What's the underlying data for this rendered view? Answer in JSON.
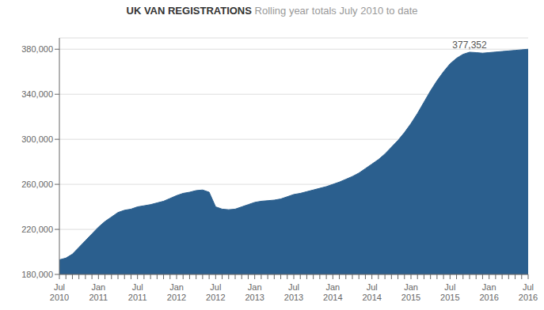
{
  "chart_data": {
    "type": "area",
    "title": "UK VAN REGISTRATIONS",
    "subtitle": " Rolling year totals July 2010 to date",
    "categories": [
      "Jul\n2010",
      null,
      null,
      null,
      null,
      null,
      "Jan\n2011",
      null,
      null,
      null,
      null,
      null,
      "Jul\n2011",
      null,
      null,
      null,
      null,
      null,
      "Jan\n2012",
      null,
      null,
      null,
      null,
      null,
      "Jul\n2012",
      null,
      null,
      null,
      null,
      null,
      "Jan\n2013",
      null,
      null,
      null,
      null,
      null,
      "Jul\n2013",
      null,
      null,
      null,
      null,
      null,
      "Jan\n2014",
      null,
      null,
      null,
      null,
      null,
      "Jul\n2014",
      null,
      null,
      null,
      null,
      null,
      "Jan\n2015",
      null,
      null,
      null,
      null,
      null,
      "Jul\n2015",
      null,
      null,
      null,
      null,
      null,
      "Jan\n2016",
      null,
      null,
      null,
      null,
      null,
      "Jul\n2016"
    ],
    "values": [
      193000,
      194500,
      198000,
      204000,
      210000,
      216000,
      222000,
      227000,
      231000,
      235000,
      237000,
      238000,
      240000,
      241000,
      242000,
      243500,
      245000,
      247500,
      250000,
      252000,
      253000,
      254500,
      255000,
      253000,
      240000,
      238000,
      237500,
      238000,
      240000,
      242000,
      244000,
      245000,
      245500,
      246000,
      247000,
      249000,
      251000,
      252000,
      253500,
      255000,
      256500,
      258000,
      260000,
      262000,
      264500,
      267000,
      270000,
      274000,
      278000,
      282000,
      287000,
      293000,
      299000,
      306000,
      314000,
      323000,
      333000,
      343000,
      352000,
      360000,
      367000,
      372000,
      375500,
      377352,
      377000,
      376500,
      377000,
      377500,
      378000,
      378500,
      379000,
      379500,
      380000
    ],
    "color": "#2B5F8E",
    "ylim": [
      180000,
      390000
    ],
    "yticks": [
      {
        "value": 180000,
        "label": "180,000"
      },
      {
        "value": 220000,
        "label": "220,000"
      },
      {
        "value": 260000,
        "label": "260,000"
      },
      {
        "value": 300000,
        "label": "300,000"
      },
      {
        "value": 340000,
        "label": "340,000"
      },
      {
        "value": 380000,
        "label": "380,000"
      }
    ],
    "grid": true,
    "annotations": [
      {
        "text": "377,352",
        "x": 63,
        "y": 377352
      }
    ]
  }
}
